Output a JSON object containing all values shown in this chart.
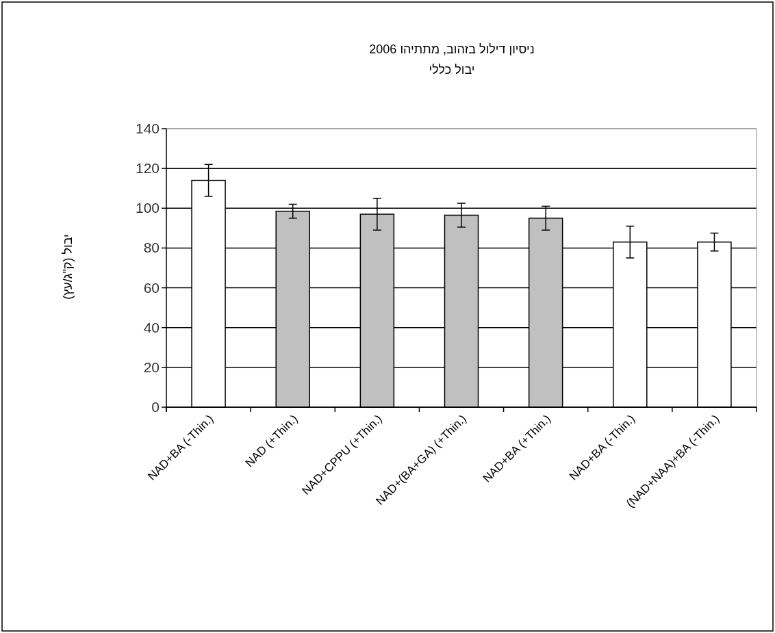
{
  "chart_data": {
    "type": "bar",
    "title": "ניסיון דילול בזהוב, מתתיהו 2006",
    "subtitle": "יבול כללי",
    "ylabel": "יבול (ק\"ג/עץ)",
    "categories": [
      "NAD+BA (-Thin.)",
      "NAD (+Thin.)",
      "NAD+CPPU (+Thin.)",
      "NAD+(BA+GA) (+Thin.)",
      "NAD+BA (+Thin.)",
      "NAD+BA (-Thin.)",
      "(NAD+NAA)+BA (-Thin.)"
    ],
    "values": [
      114,
      98.5,
      97,
      96.5,
      95,
      83,
      83
    ],
    "errors": [
      8,
      3.5,
      8,
      6,
      6,
      8,
      4.5
    ],
    "colors": [
      "#ffffff",
      "#c0c0c0",
      "#c0c0c0",
      "#c0c0c0",
      "#c0c0c0",
      "#ffffff",
      "#ffffff"
    ],
    "ylim": [
      0,
      140
    ],
    "yticks": [
      0,
      20,
      40,
      60,
      80,
      100,
      120,
      140
    ],
    "grid": "y"
  }
}
